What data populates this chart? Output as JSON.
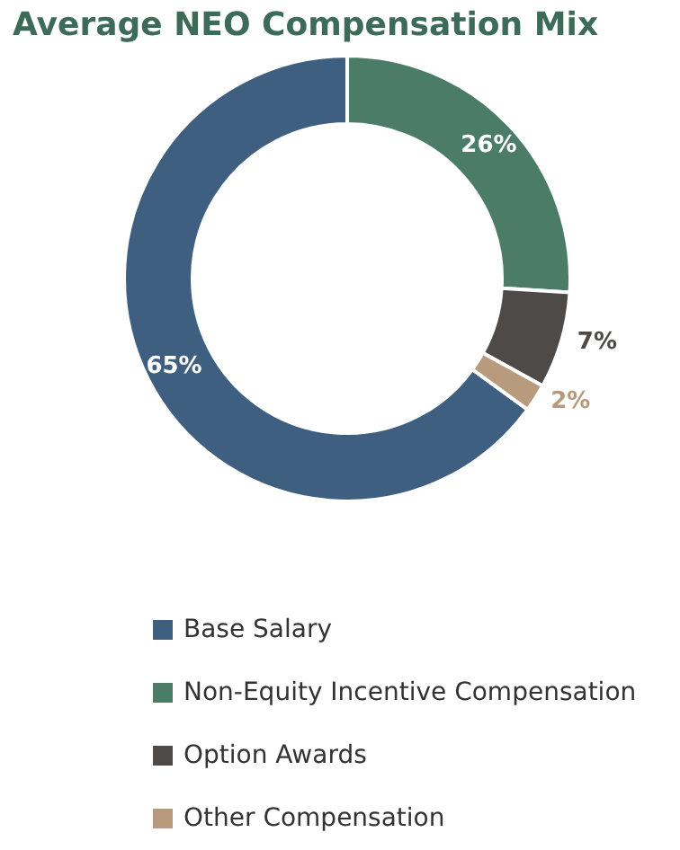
{
  "chart_data": {
    "type": "donut",
    "title": "Average NEO Compensation Mix",
    "categories": [
      "Base Salary",
      "Non-Equity Incentive Compensation",
      "Option Awards",
      "Other Compensation"
    ],
    "values": [
      65,
      26,
      7,
      2
    ],
    "value_labels": [
      "65%",
      "26%",
      "7%",
      "2%"
    ],
    "colors": [
      "#3f5f80",
      "#4a7c68",
      "#4d4a47",
      "#b89a7c"
    ],
    "legend": "bottom"
  }
}
